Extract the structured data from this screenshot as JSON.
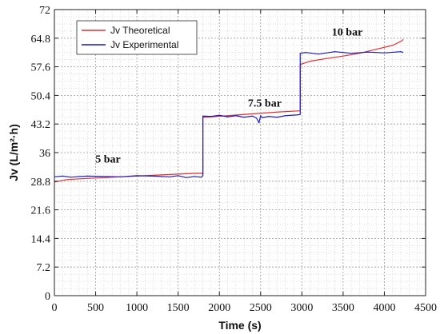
{
  "chart_data": {
    "type": "line",
    "title": "",
    "xlabel": "Time (s)",
    "ylabel": "Jv (L/m²·h)",
    "xlim": [
      0,
      4500
    ],
    "ylim": [
      0,
      72
    ],
    "xticks": [
      "0",
      "500",
      "1000",
      "1500",
      "2000",
      "2500",
      "3000",
      "3500",
      "4000",
      "4500"
    ],
    "yticks": [
      "0",
      "7.2",
      "14.4",
      "21.6",
      "28.8",
      "36",
      "43.2",
      "50.4",
      "57.6",
      "64.8",
      "72"
    ],
    "grid": true,
    "legend_position": "top-left",
    "annotations": [
      {
        "text": "5 bar",
        "x": 650,
        "y": 33.5
      },
      {
        "text": "7.5 bar",
        "x": 2550,
        "y": 47.6
      },
      {
        "text": "10 bar",
        "x": 3550,
        "y": 65.5
      }
    ],
    "series": [
      {
        "name": "Jv Theoretical",
        "color": "#e03030",
        "x": [
          0,
          150,
          300,
          500,
          700,
          900,
          1100,
          1300,
          1500,
          1700,
          1800,
          1800,
          1900,
          2100,
          2300,
          2500,
          2700,
          2950,
          2980,
          2980,
          3100,
          3300,
          3500,
          3700,
          3900,
          4100,
          4200,
          4230
        ],
        "y": [
          28.6,
          29.2,
          29.4,
          29.6,
          29.8,
          30.0,
          30.2,
          30.4,
          30.6,
          30.8,
          30.8,
          44.9,
          45.0,
          45.3,
          45.6,
          45.9,
          46.2,
          46.5,
          46.5,
          58.2,
          59.0,
          59.7,
          60.3,
          61.0,
          62.0,
          63.0,
          64.0,
          64.5
        ]
      },
      {
        "name": "Jv Experimental",
        "color": "#1a1ab8",
        "x": [
          0,
          100,
          200,
          300,
          400,
          600,
          800,
          1000,
          1200,
          1400,
          1500,
          1600,
          1700,
          1780,
          1800,
          1800,
          1900,
          2000,
          2100,
          2200,
          2300,
          2400,
          2450,
          2480,
          2500,
          2520,
          2600,
          2700,
          2800,
          2950,
          2980,
          2980,
          3050,
          3200,
          3400,
          3600,
          3800,
          4000,
          4200,
          4230
        ],
        "y": [
          29.9,
          30.1,
          29.8,
          30.0,
          30.1,
          30.0,
          29.9,
          30.2,
          30.1,
          29.9,
          30.2,
          29.7,
          30.0,
          29.8,
          30.2,
          45.2,
          45.1,
          45.4,
          45.0,
          45.3,
          44.9,
          45.2,
          44.7,
          43.5,
          45.3,
          44.8,
          45.1,
          44.9,
          45.3,
          45.5,
          45.6,
          61.0,
          61.2,
          60.8,
          61.4,
          61.0,
          61.3,
          61.1,
          61.4,
          61.2
        ]
      }
    ]
  }
}
